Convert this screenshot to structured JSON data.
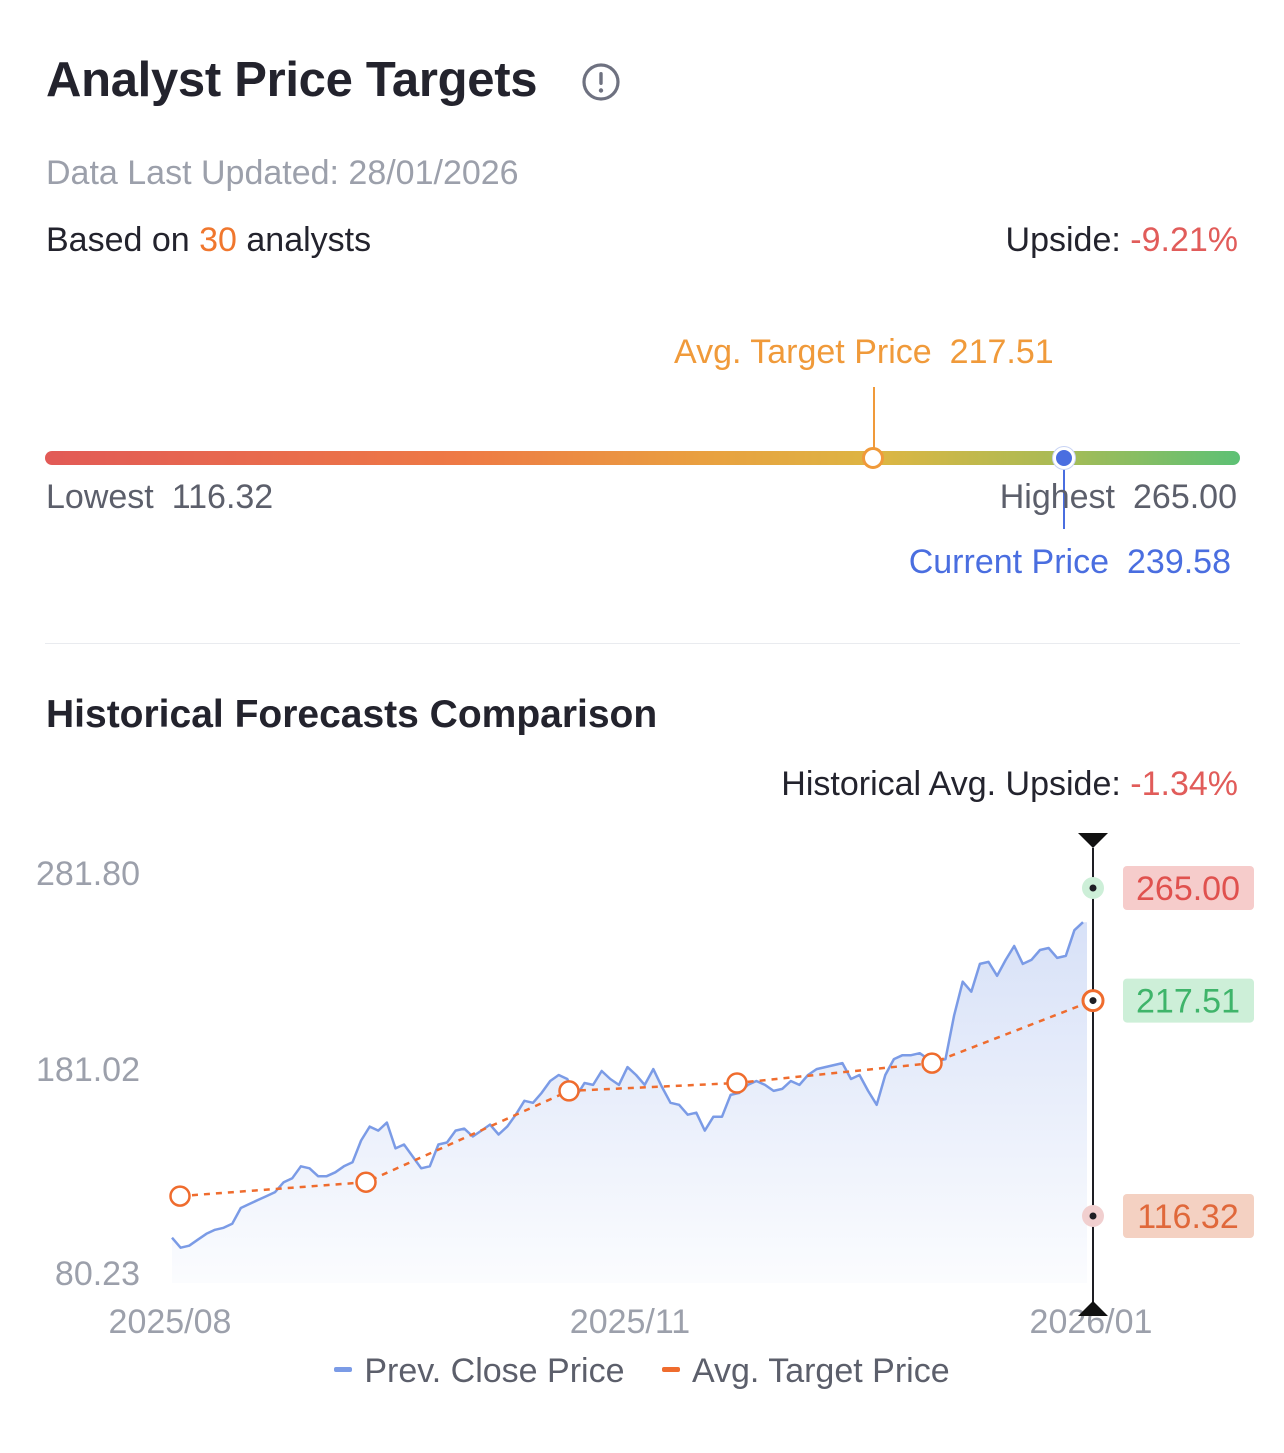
{
  "header": {
    "title": "Analyst Price Targets",
    "info_icon": "info-circle-icon",
    "updated": "Data Last Updated: 28/01/2026",
    "based_prefix": "Based on ",
    "analyst_count": "30",
    "based_suffix": " analysts",
    "upside_label": "Upside: ",
    "upside_value": "-9.21%"
  },
  "range": {
    "avg_label": "Avg. Target Price",
    "avg_value": "217.51",
    "lowest_label": "Lowest",
    "lowest_value": "116.32",
    "highest_label": "Highest",
    "highest_value": "265.00",
    "current_label": "Current Price",
    "current_value": "239.58"
  },
  "history": {
    "title": "Historical Forecasts Comparison",
    "upside_label": "Historical Avg. Upside: ",
    "upside_value": "-1.34%"
  },
  "colors": {
    "prev_close": "#7b9be6",
    "avg_target": "#ef6c2e",
    "high_badge_bg": "#f6cccb",
    "high_badge_text": "#e0514e",
    "avg_badge_bg": "#cdefd8",
    "avg_badge_text": "#3fb46a",
    "low_badge_bg": "#f4d1c2",
    "low_badge_text": "#e0683a"
  },
  "chart_data": {
    "type": "line",
    "y_ticks": [
      "281.80",
      "181.02",
      "80.23"
    ],
    "ylim": [
      80.23,
      281.8
    ],
    "x_ticks": [
      "2025/08",
      "2025/11",
      "2026/01"
    ],
    "legend": [
      "Prev. Close Price",
      "Avg. Target Price"
    ],
    "markers": {
      "highest": "265.00",
      "average": "217.51",
      "lowest": "116.32"
    },
    "series": [
      {
        "name": "Prev. Close Price",
        "values": [
          98,
          93,
          94,
          97,
          100,
          102,
          103,
          105,
          113,
          115,
          117,
          119,
          121,
          126,
          128,
          134,
          133,
          129,
          129,
          131,
          134,
          136,
          147,
          154,
          152,
          156,
          143,
          145,
          139,
          133,
          134,
          145,
          146,
          152,
          153,
          149,
          152,
          155,
          150,
          154,
          160,
          167,
          166,
          171,
          177,
          180,
          178,
          169,
          176,
          175,
          182,
          178,
          175,
          184,
          180,
          175,
          183,
          174,
          166,
          165,
          160,
          161,
          152,
          159,
          159,
          170,
          171,
          175,
          177,
          175,
          172,
          173,
          177,
          175,
          180,
          183,
          184,
          185,
          186,
          178,
          180,
          172,
          165,
          180,
          188,
          190,
          190,
          191,
          188,
          187,
          188,
          210,
          227,
          222,
          236,
          237,
          230,
          238,
          245,
          236,
          238,
          243,
          244,
          239,
          240,
          253,
          257
        ]
      },
      {
        "name": "Avg. Target Price",
        "values": [
          119,
          126,
          172,
          176,
          186,
          217.51
        ]
      }
    ]
  }
}
